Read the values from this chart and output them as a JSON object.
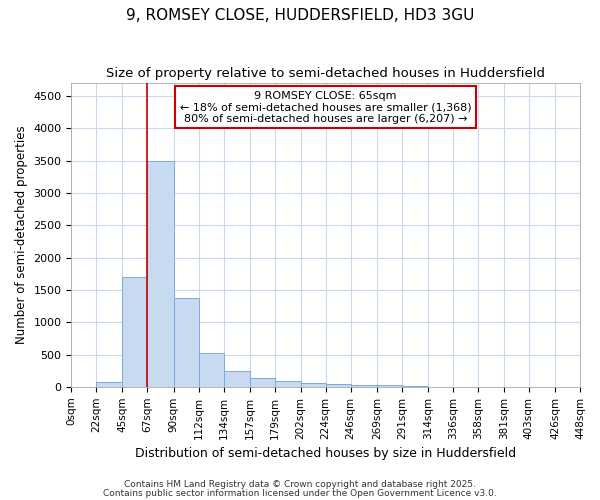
{
  "title": "9, ROMSEY CLOSE, HUDDERSFIELD, HD3 3GU",
  "subtitle": "Size of property relative to semi-detached houses in Huddersfield",
  "xlabel": "Distribution of semi-detached houses by size in Huddersfield",
  "ylabel": "Number of semi-detached properties",
  "bin_edges": [
    0,
    22,
    45,
    67,
    90,
    112,
    134,
    157,
    179,
    202,
    224,
    246,
    269,
    291,
    314,
    336,
    358,
    381,
    403,
    426,
    448
  ],
  "bar_heights": [
    0,
    80,
    1700,
    3500,
    1380,
    530,
    245,
    135,
    95,
    60,
    40,
    35,
    30,
    5,
    2,
    1,
    1,
    0,
    0,
    0
  ],
  "bar_color": "#c8daf0",
  "bar_edge_color": "#7aabe0",
  "grid_color": "#c8daf0",
  "background_color": "#ffffff",
  "plot_bg_color": "#ffffff",
  "property_line_x": 67,
  "property_line_color": "#cc0000",
  "annotation_title": "9 ROMSEY CLOSE: 65sqm",
  "annotation_line1": "← 18% of semi-detached houses are smaller (1,368)",
  "annotation_line2": "80% of semi-detached houses are larger (6,207) →",
  "annotation_box_color": "#cc0000",
  "ylim": [
    0,
    4700
  ],
  "yticks": [
    0,
    500,
    1000,
    1500,
    2000,
    2500,
    3000,
    3500,
    4000,
    4500
  ],
  "tick_labels": [
    "0sqm",
    "22sqm",
    "45sqm",
    "67sqm",
    "90sqm",
    "112sqm",
    "134sqm",
    "157sqm",
    "179sqm",
    "202sqm",
    "224sqm",
    "246sqm",
    "269sqm",
    "291sqm",
    "314sqm",
    "336sqm",
    "358sqm",
    "381sqm",
    "403sqm",
    "426sqm",
    "448sqm"
  ],
  "footer1": "Contains HM Land Registry data © Crown copyright and database right 2025.",
  "footer2": "Contains public sector information licensed under the Open Government Licence v3.0."
}
